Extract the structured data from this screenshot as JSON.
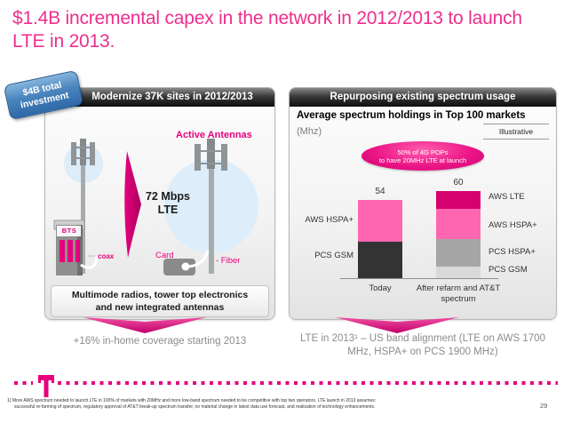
{
  "title": "$1.4B incremental capex in the network in 2012/2013 to launch LTE in 2013.",
  "badge": {
    "line1": "$4B total",
    "line2": "investment"
  },
  "left_panel": {
    "header": "Modernize 37K sites in 2012/2013",
    "active_antennas_label": "Active Antennas",
    "speed_line1": "72 Mbps",
    "speed_line2": "LTE",
    "bts_label": "BTS",
    "coax_label": "coax",
    "card_label": "Card",
    "fiber_label": "- Fiber",
    "bottom_note_line1": "Multimode radios, tower top electronics",
    "bottom_note_line2": "and new integrated antennas",
    "takeaway": "+16% in-home  coverage starting  2013"
  },
  "right_panel": {
    "header": "Repurposing existing spectrum usage",
    "chart_title": "Average spectrum holdings in Top 100 markets",
    "chart_unit": "(Mhz)",
    "illustrative_label": "Illustrative",
    "callout_line1": "50% of 4G POPs",
    "callout_line2": "to have 20MHz LTE at launch",
    "takeaway_line1": "LTE in 2013¹ – US band alignment (LTE on AWS 1700",
    "takeaway_line2": "MHz, HSPA+ on PCS 1900 MHz)"
  },
  "chart_data": {
    "type": "bar",
    "stacked": true,
    "title": "Average spectrum holdings in Top 100 markets",
    "unit": "Mhz",
    "annotation": "50% of 4G POPs to have 20MHz LTE at launch",
    "note": "Illustrative",
    "categories": [
      "Today",
      "After refarm and AT&T spectrum"
    ],
    "totals": [
      54,
      60
    ],
    "ylim": [
      0,
      65
    ],
    "legend_position": "side-labels",
    "bars": [
      {
        "category": "Today",
        "segments": [
          {
            "name": "PCS GSM",
            "value": 25,
            "color": "#333333"
          },
          {
            "name": "AWS HSPA+",
            "value": 29,
            "color": "#ff66b2"
          }
        ]
      },
      {
        "category": "After refarm and AT&T spectrum",
        "segments": [
          {
            "name": "PCS GSM",
            "value": 8,
            "color": "#d9d9d9"
          },
          {
            "name": "PCS HSPA+",
            "value": 19,
            "color": "#a6a6a6"
          },
          {
            "name": "AWS HSPA+",
            "value": 21,
            "color": "#ff66b2"
          },
          {
            "name": "AWS LTE",
            "value": 12,
            "color": "#d60070"
          }
        ]
      }
    ]
  },
  "footer": {
    "footnote_line1": "1) More AWS spectrum needed to launch LTE in 100% of markets with 20MHz and more low-band spectrum needed to be competitive with top two  operators. LTE launch in 2013 assumes:",
    "footnote_line2": "successful re-farming of spectrum, regulatory approval of AT&T break-up spectrum transfer, no material change in latest data use forecast, and realization of technology enhancements.",
    "page_number": "29"
  }
}
